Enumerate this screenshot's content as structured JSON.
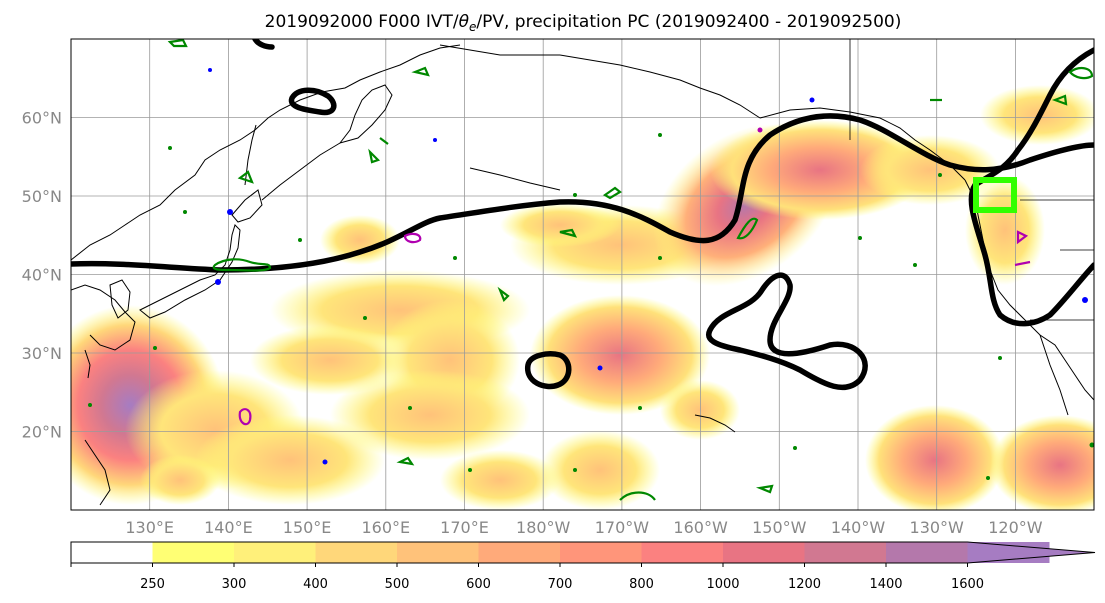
{
  "title_main": "2019092000 F000 IVT/",
  "title_theta": "θ",
  "title_sub": "e",
  "title_rest": "/PV, precipitation PC (2019092400 - 2019092500)",
  "map": {
    "lat_labels": [
      "20°N",
      "30°N",
      "40°N",
      "50°N",
      "60°N"
    ],
    "lon_labels": [
      "130°E",
      "140°E",
      "150°E",
      "160°E",
      "170°E",
      "180°W",
      "170°W",
      "160°W",
      "150°W",
      "140°W",
      "130°W",
      "120°W"
    ],
    "projection_extent": {
      "lon_min": 120,
      "lon_max": 250,
      "lat_min": 10,
      "lat_max": 70
    }
  },
  "colorbar": {
    "ticks": [
      "250",
      "300",
      "400",
      "500",
      "600",
      "700",
      "800",
      "1000",
      "1200",
      "1400",
      "1600"
    ],
    "colors": [
      "#ffffff",
      "#ffff74",
      "#fff07a",
      "#ffd77a",
      "#ffc27a",
      "#ffaa7a",
      "#ff957a",
      "#fb8180",
      "#e87483",
      "#d17891",
      "#b478ab",
      "#a67cc2"
    ],
    "extend": "max"
  },
  "colors": {
    "theta_contour": "#000000",
    "pv_green": "#008800",
    "pv_blue": "#0000ff",
    "pv_magenta": "#b000b0",
    "target_box": "#33ff00"
  }
}
